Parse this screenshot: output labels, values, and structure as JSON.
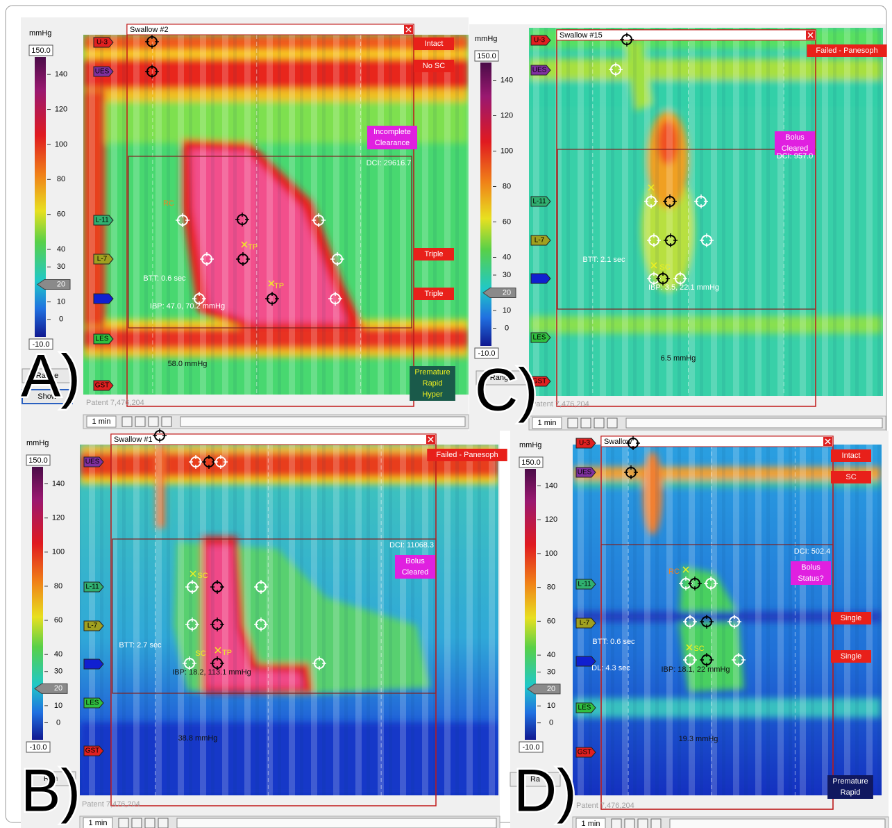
{
  "panels": [
    {
      "label": "A)",
      "title": "Swallow #2",
      "unit": "mmHg",
      "scale_max": "150.0",
      "scale_min": "-10.0",
      "scale_ticks": [
        140,
        120,
        100,
        80,
        60,
        40,
        30,
        20,
        10,
        0
      ],
      "sensors": [
        "U-3",
        "UES",
        "L-11",
        "L-7",
        "LES",
        "GST"
      ],
      "statuses": [
        [
          "Intact"
        ],
        [
          "No SC"
        ],
        [
          "Incomplete",
          "Clearance"
        ],
        [
          "Triple"
        ],
        [
          "Triple"
        ],
        [
          "Premature",
          "Rapid",
          "Hyper"
        ]
      ],
      "notes": [
        "DCI: 29616.7",
        "RC",
        "TP",
        "TP",
        "BTT: 0.6 sec",
        "IBP: 47.0, 70.2 mmHg",
        "58.0 mmHg"
      ],
      "patent": "Patent 7,476,204",
      "zoom": "1 min",
      "buttons": [
        "Range",
        "Show"
      ]
    },
    {
      "label": "C)",
      "title": "Swallow #15",
      "unit": "mmHg",
      "scale_max": "150.0",
      "scale_min": "-10.0",
      "scale_ticks": [
        140,
        120,
        100,
        80,
        60,
        40,
        30,
        20,
        10,
        0
      ],
      "sensors": [
        "U-3",
        "UES",
        "L-11",
        "L-7",
        "LES",
        "GST"
      ],
      "statuses": [
        [
          "Failed - Panesoph"
        ],
        [
          "Bolus",
          "Cleared"
        ]
      ],
      "notes": [
        "DCI: 957.0",
        "BTT: 2.1 sec",
        "SC",
        "IBP: 3.5, 22.1 mmHg",
        "6.5 mmHg"
      ],
      "patent": "Patent 7,476,204",
      "zoom": "1 min",
      "buttons": [
        "Range"
      ]
    },
    {
      "label": "B)",
      "title": "Swallow #1",
      "unit": "mmHg",
      "scale_max": "150.0",
      "scale_min": "-10.0",
      "scale_ticks": [
        140,
        120,
        100,
        80,
        60,
        40,
        30,
        20,
        10,
        0
      ],
      "sensors": [
        "UES",
        "L-11",
        "L-7",
        "LES",
        "GST"
      ],
      "statuses": [
        [
          "Failed - Panesoph"
        ],
        [
          "Bolus",
          "Cleared"
        ]
      ],
      "notes": [
        "DCI: 11068.3",
        "SC",
        "BTT: 2.7 sec",
        "SC",
        "TP",
        "IBP: 18.2, 113.1 mmHg",
        "38.8 mmHg"
      ],
      "patent": "Patent 7,476,204",
      "zoom": "1 min",
      "buttons": [
        "Ran"
      ]
    },
    {
      "label": "D)",
      "title": "Swallow",
      "unit": "mmHg",
      "scale_max": "150.0",
      "scale_min": "-10.0",
      "scale_ticks": [
        140,
        120,
        100,
        80,
        60,
        40,
        30,
        20,
        10,
        0
      ],
      "sensors": [
        "U-3",
        "UES",
        "L-11",
        "L-7",
        "LES",
        "GST"
      ],
      "statuses": [
        [
          "Intact"
        ],
        [
          "SC"
        ],
        [
          "Bolus",
          "Status?"
        ],
        [
          "Single"
        ],
        [
          "Single"
        ],
        [
          "Premature",
          "Rapid"
        ]
      ],
      "notes": [
        "DCI: 502.4",
        "RC",
        "SC",
        "BTT: 0.6 sec",
        "DL: 4.3 sec",
        "IBP: 18.1, 22 mmHg",
        "19.3 mmHg"
      ],
      "patent": "Patent 7,476,204",
      "zoom": "1 min",
      "buttons": [
        "Ra"
      ]
    }
  ]
}
